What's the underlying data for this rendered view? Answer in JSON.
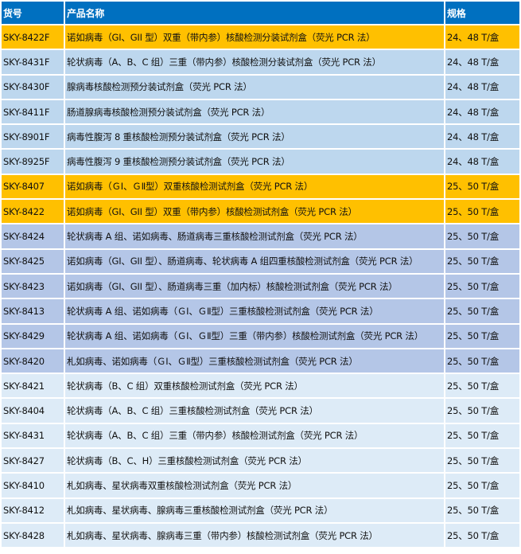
{
  "header": {
    "code": "货号",
    "name": "产品名称",
    "spec": "规格"
  },
  "colors": {
    "header": "#0070c0",
    "orange": "#ffc000",
    "light": "#bdd7ee",
    "peri": "#b4c6e7",
    "pale": "#ddebf7"
  },
  "rows": [
    {
      "code": "SKY-8422F",
      "name": "诺如病毒（GI、GII 型）双重（带内参）核酸检测分装试剂盒（荧光 PCR 法）",
      "spec": "24、48 T/盒",
      "style": "orange"
    },
    {
      "code": "SKY-8431F",
      "name": "轮状病毒（A、B、C 组）三重（带内参）核酸检测分装试剂盒（荧光 PCR 法）",
      "spec": "24、48 T/盒",
      "style": "light"
    },
    {
      "code": "SKY-8430F",
      "name": "腺病毒核酸检测预分装试剂盒（荧光 PCR 法）",
      "spec": "24、48 T/盒",
      "style": "light"
    },
    {
      "code": "SKY-8411F",
      "name": "肠道腺病毒核酸检测预分装试剂盒（荧光 PCR 法）",
      "spec": "24、48 T/盒",
      "style": "light"
    },
    {
      "code": "SKY-8901F",
      "name": "病毒性腹泻 8 重核酸检测预分装试剂盒（荧光 PCR 法）",
      "spec": "24、48 T/盒",
      "style": "light"
    },
    {
      "code": "SKY-8925F",
      "name": "病毒性腹泻 9 重核酸检测预分装试剂盒（荧光 PCR 法）",
      "spec": "24、48 T/盒",
      "style": "light"
    },
    {
      "code": "SKY-8407",
      "name": "诺如病毒（ＧⅠ、ＧⅡ型）双重核酸检测试剂盒（荧光 PCR 法）",
      "spec": "25、50 T/盒",
      "style": "orange"
    },
    {
      "code": "SKY-8422",
      "name": "诺如病毒（GI、GII 型）双重（带内参）核酸检测试剂盒（荧光 PCR 法）",
      "spec": "25、50 T/盒",
      "style": "orange"
    },
    {
      "code": "SKY-8424",
      "name": "轮状病毒 A 组、诺如病毒、肠道病毒三重核酸检测试剂盒（荧光 PCR 法）",
      "spec": "25、50 T/盒",
      "style": "peri"
    },
    {
      "code": "SKY-8425",
      "name": "诺如病毒（GI、GII 型）、肠道病毒、轮状病毒 A 组四重核酸检测试剂盒（荧光 PCR 法）",
      "spec": "25、50 T/盒",
      "style": "peri"
    },
    {
      "code": "SKY-8423",
      "name": "诺如病毒（GI、GII 型）、肠道病毒三重（加内标）核酸检测试剂盒（荧光 PCR 法）",
      "spec": "25、50 T/盒",
      "style": "peri"
    },
    {
      "code": "SKY-8413",
      "name": "轮状病毒 A 组、诺如病毒（ＧⅠ、ＧⅡ型）三重核酸检测试剂盒（荧光 PCR 法）",
      "spec": "25、50 T/盒",
      "style": "peri"
    },
    {
      "code": "SKY-8429",
      "name": "轮状病毒 A 组、诺如病毒（ＧⅠ、ＧⅡ型）三重（带内参）核酸检测试剂盒（荧光 PCR 法）",
      "spec": "25、50 T/盒",
      "style": "peri"
    },
    {
      "code": "SKY-8420",
      "name": "札如病毒、诺如病毒（ＧⅠ、ＧⅡ型）三重核酸检测试剂盒（荧光 PCR 法）",
      "spec": "25、50 T/盒",
      "style": "peri"
    },
    {
      "code": "SKY-8421",
      "name": "轮状病毒（B、C 组）双重核酸检测试剂盒（荧光 PCR 法）",
      "spec": "25、50 T/盒",
      "style": "pale"
    },
    {
      "code": "SKY-8404",
      "name": "轮状病毒（A、B、C 组）三重核酸检测试剂盒（荧光 PCR 法）",
      "spec": "25、50 T/盒",
      "style": "pale"
    },
    {
      "code": "SKY-8431",
      "name": "轮状病毒（A、B、C 组）三重（带内参）核酸检测试剂盒（荧光 PCR 法）",
      "spec": "25、50 T/盒",
      "style": "pale"
    },
    {
      "code": "SKY-8427",
      "name": "轮状病毒（B、C、H）三重核酸检测试剂盒（荧光 PCR 法）",
      "spec": "25、50 T/盒",
      "style": "pale"
    },
    {
      "code": "SKY-8410",
      "name": "札如病毒、星状病毒双重核酸检测试剂盒（荧光 PCR 法）",
      "spec": "25、50 T/盒",
      "style": "pale"
    },
    {
      "code": "SKY-8412",
      "name": "札如病毒、星状病毒、腺病毒三重核酸检测试剂盒（荧光 PCR 法）",
      "spec": "25、50 T/盒",
      "style": "pale"
    },
    {
      "code": "SKY-8428",
      "name": "札如病毒、星状病毒、腺病毒三重（带内参）核酸检测试剂盒（荧光 PCR 法）",
      "spec": "25、50 T/盒",
      "style": "pale"
    }
  ]
}
